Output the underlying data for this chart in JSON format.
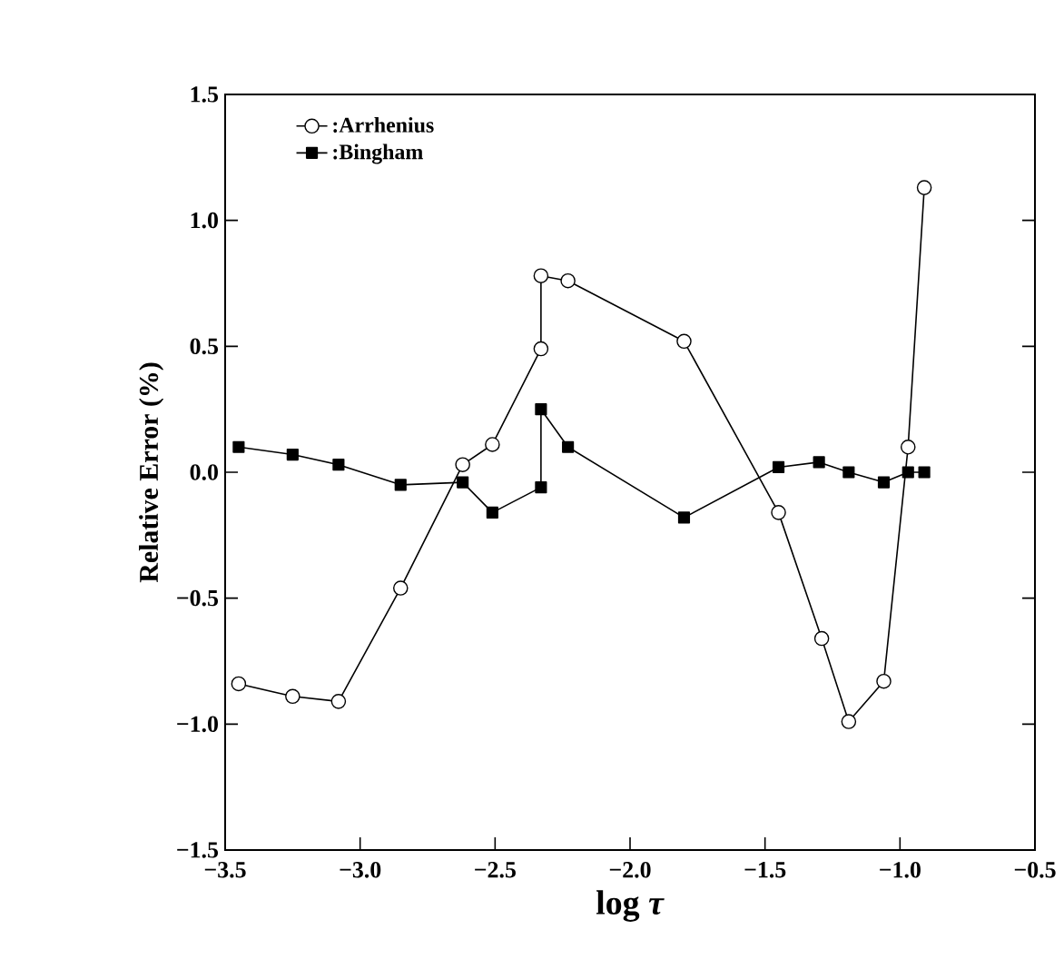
{
  "chart_data": {
    "type": "line",
    "xlabel": "log *τ*",
    "ylabel": "Relative Error (%)",
    "xlim": [
      -3.5,
      -0.5
    ],
    "ylim": [
      -1.5,
      1.5
    ],
    "xticks": [
      {
        "value": -3.5,
        "label": "−3.5"
      },
      {
        "value": -3.0,
        "label": "−3.0"
      },
      {
        "value": -2.5,
        "label": "−2.5"
      },
      {
        "value": -2.0,
        "label": "−2.0"
      },
      {
        "value": -1.5,
        "label": "−1.5"
      },
      {
        "value": -1.0,
        "label": "−1.0"
      },
      {
        "value": -0.5,
        "label": "−0.5"
      }
    ],
    "yticks": [
      {
        "value": -1.5,
        "label": "−1.5"
      },
      {
        "value": -1.0,
        "label": "−1.0"
      },
      {
        "value": -0.5,
        "label": "−0.5"
      },
      {
        "value": 0.0,
        "label": "0.0"
      },
      {
        "value": 0.5,
        "label": "0.5"
      },
      {
        "value": 1.0,
        "label": "1.0"
      },
      {
        "value": 1.5,
        "label": "1.5"
      }
    ],
    "legend": "top left",
    "grid": false,
    "series": [
      {
        "name": ":Arrhenius",
        "color": "#000000",
        "marker": "circle",
        "x": [
          -3.45,
          -3.25,
          -3.08,
          -2.85,
          -2.62,
          -2.51,
          -2.33,
          -2.33,
          -2.23,
          -1.8,
          -1.45,
          -1.29,
          -1.19,
          -1.06,
          -0.97,
          -0.91
        ],
        "values": [
          -0.84,
          -0.89,
          -0.91,
          -0.46,
          0.03,
          0.11,
          0.49,
          0.78,
          0.76,
          0.52,
          -0.16,
          -0.66,
          -0.99,
          -0.83,
          0.1,
          1.13
        ]
      },
      {
        "name": ":Bingham",
        "color": "#000000",
        "marker": "square",
        "x": [
          -3.45,
          -3.25,
          -3.08,
          -2.85,
          -2.62,
          -2.51,
          -2.33,
          -2.33,
          -2.23,
          -1.8,
          -1.45,
          -1.3,
          -1.19,
          -1.06,
          -0.97,
          -0.91
        ],
        "values": [
          0.1,
          0.07,
          0.03,
          -0.05,
          -0.04,
          -0.16,
          -0.06,
          0.25,
          0.1,
          -0.18,
          0.02,
          0.04,
          0.0,
          -0.04,
          0.0,
          0.0
        ]
      }
    ]
  }
}
